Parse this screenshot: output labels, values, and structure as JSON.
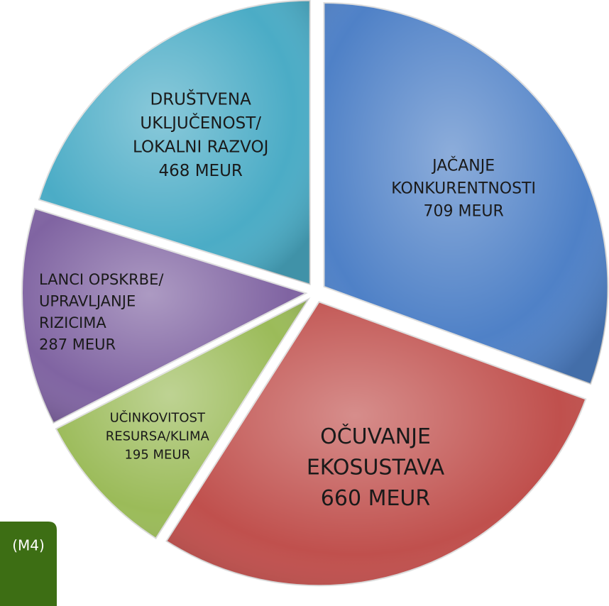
{
  "tag": "(M4)",
  "chart_data": {
    "type": "pie",
    "categories": [
      [
        "JAČANJE",
        "KONKURENTNOSTI"
      ],
      [
        "OČUVANJE",
        "EKOSUSTAVA"
      ],
      [
        "UČINKOVITOST",
        "RESURSA/KLIMA"
      ],
      [
        "LANCI OPSKRBE/",
        "UPRAVLJANJE",
        "RIZICIMA"
      ],
      [
        "DRUŠTVENA",
        "UKLJUČENOST/",
        "LOKALNI RAZVOJ"
      ]
    ],
    "values": [
      709,
      660,
      195,
      287,
      468
    ],
    "value_labels": [
      "709 MEUR",
      "660 MEUR",
      "195 MEUR",
      "287 MEUR",
      "468 MEUR"
    ],
    "colors": [
      "#4f81c7",
      "#c0504d",
      "#9bbb59",
      "#8064a2",
      "#4bacc6"
    ]
  }
}
